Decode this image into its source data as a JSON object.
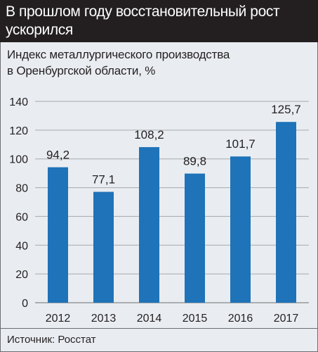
{
  "header": {
    "title": "В прошлом году восстановительный рост ускорился"
  },
  "subtitle": {
    "line1": "Индекс металлургического производства",
    "line2": "в Оренбургской области, %"
  },
  "source": "Источник: Росстат",
  "colors": {
    "bar": "#1f73b8",
    "grid": "#a7a9ac",
    "header_bg": "#231f20",
    "background": "#e9edf1"
  },
  "chart_data": {
    "type": "bar",
    "categories": [
      "2012",
      "2013",
      "2014",
      "2015",
      "2016",
      "2017"
    ],
    "values": [
      94.2,
      77.1,
      108.2,
      89.8,
      101.7,
      125.7
    ],
    "value_labels": [
      "94,2",
      "77,1",
      "108,2",
      "89,8",
      "101,7",
      "125,7"
    ],
    "title": "Индекс металлургического производства в Оренбургской области, %",
    "xlabel": "",
    "ylabel": "",
    "ylim": [
      0,
      140
    ],
    "yticks": [
      0,
      20,
      40,
      60,
      80,
      100,
      120,
      140
    ],
    "grid": true,
    "legend": "none"
  }
}
